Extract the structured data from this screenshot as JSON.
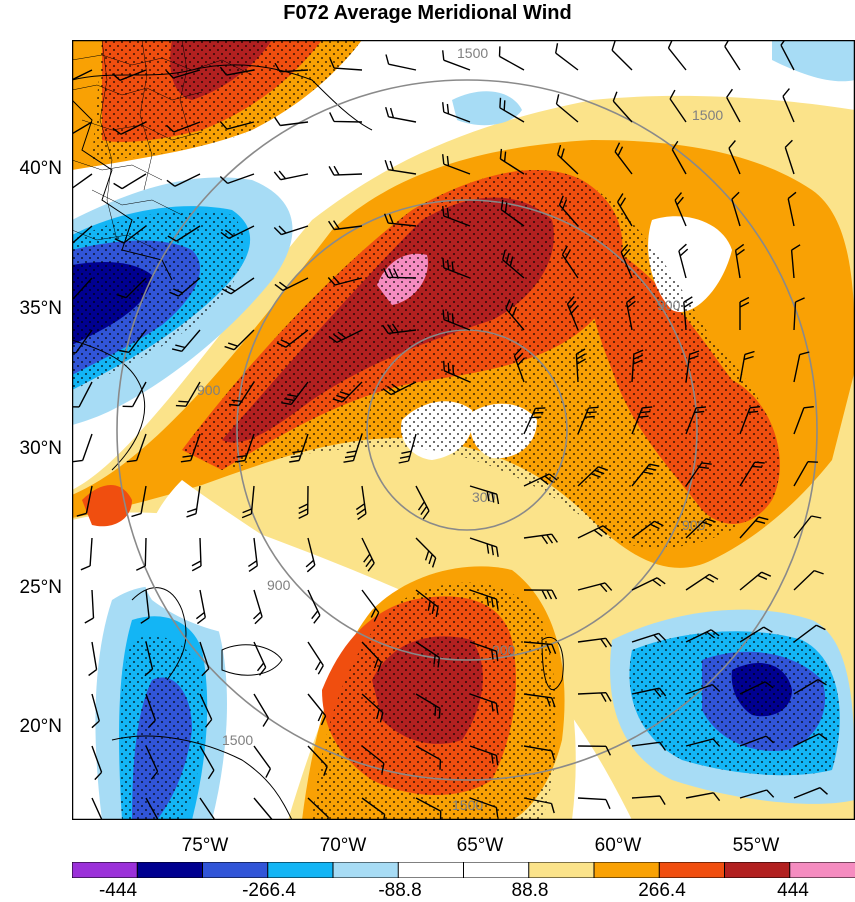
{
  "title": "F072 Average Meridional Wind",
  "map": {
    "lat_labels": [
      "40°N",
      "35°N",
      "30°N",
      "25°N",
      "20°N"
    ],
    "lon_labels": [
      "75°W",
      "70°W",
      "65°W",
      "60°W",
      "55°W"
    ],
    "range_ring_labels": [
      "1500",
      "1500",
      "900",
      "900",
      "900",
      "900",
      "900",
      "300",
      "1500",
      "1500"
    ],
    "colormap": {
      "levels": [
        "-444",
        "-266.4",
        "-88.8",
        "88.8",
        "266.4",
        "444"
      ],
      "colors": [
        "#9b30d9",
        "#000090",
        "#3155d8",
        "#13b5f5",
        "#a7dcf5",
        "#ffffff",
        "#ffffff",
        "#fbe38a",
        "#f9a104",
        "#f04e0f",
        "#b22020",
        "#f58cc0"
      ]
    },
    "stipple_meaning": "significance stippling",
    "center_feature": "hurricane-eye"
  }
}
